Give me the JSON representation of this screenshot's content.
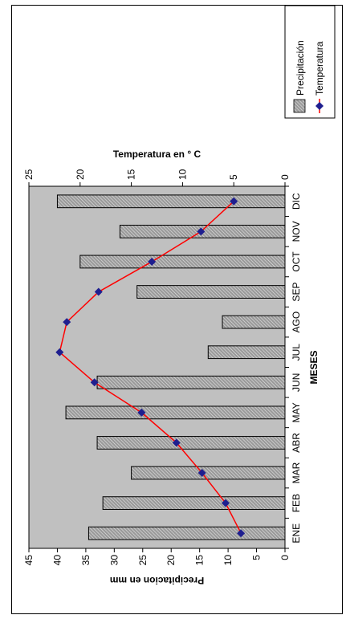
{
  "chart_data": {
    "type": "bar",
    "orientation": "rotated-90-ccw",
    "categories": [
      "ENE",
      "FEB",
      "MAR",
      "ABR",
      "MAY",
      "JUN",
      "JUL",
      "AGO",
      "SEP",
      "OCT",
      "NOV",
      "DIC"
    ],
    "series": [
      {
        "name": "Precipitación",
        "type": "bar",
        "axis": "primary",
        "values": [
          34.5,
          32,
          27,
          33,
          38.5,
          33,
          13.5,
          11,
          26,
          36,
          29,
          40
        ]
      },
      {
        "name": "Temperatura",
        "type": "line",
        "axis": "secondary",
        "values": [
          4.3,
          5.8,
          8.1,
          10.6,
          14,
          18.6,
          22,
          21.3,
          18.2,
          13,
          8.2,
          5
        ]
      }
    ],
    "xlabel": "MESES",
    "ylabel": "Precipitacion en mm",
    "y2label": "Temperatura en ° C",
    "ylim": [
      0,
      45
    ],
    "y2lim": [
      0,
      25
    ],
    "yticks": [
      "0",
      "5",
      "10",
      "15",
      "20",
      "25",
      "30",
      "35",
      "40",
      "45"
    ],
    "y2ticks": [
      "0",
      "5",
      "10",
      "15",
      "20",
      "25"
    ],
    "grid": false,
    "legend_position": "top-right",
    "colors": {
      "plot_bg": "#c0c0c0",
      "bar": "#bdbdbd",
      "line": "#ff0000",
      "marker": "#1f1f8f"
    }
  }
}
